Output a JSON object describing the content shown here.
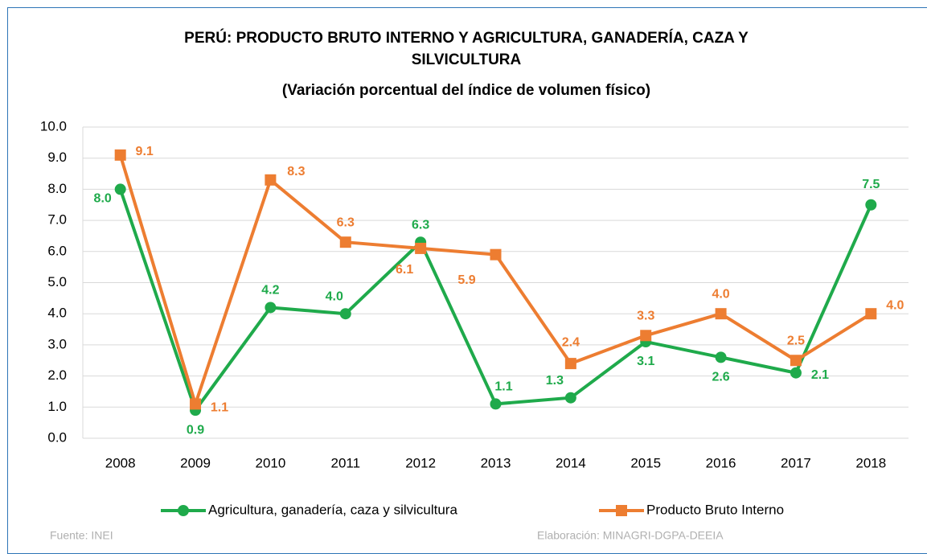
{
  "chart_data": {
    "type": "line",
    "title": "PERÚ: PRODUCTO BRUTO INTERNO Y AGRICULTURA, GANADERÍA, CAZA Y SILVICULTURA",
    "subtitle": "(Variación porcentual del índice de volumen físico)",
    "categories": [
      "2008",
      "2009",
      "2010",
      "2011",
      "2012",
      "2013",
      "2014",
      "2015",
      "2016",
      "2017",
      "2018"
    ],
    "series": [
      {
        "name": "Agricultura, ganadería, caza y silvicultura",
        "color": "#1faa4b",
        "marker": "circle",
        "values": [
          8,
          0.9,
          4.2,
          4,
          6.3,
          1.1,
          1.3,
          3.1,
          2.6,
          2.1,
          7.5
        ],
        "value_labels": [
          "8.0",
          "0.9",
          "4.2",
          "4.0",
          "6.3",
          "1.1",
          "1.3",
          "3.1",
          "2.6",
          "2.1",
          "7.5"
        ]
      },
      {
        "name": "Producto Bruto Interno",
        "color": "#ed7d31",
        "marker": "square",
        "values": [
          9.1,
          1.1,
          8.3,
          6.3,
          6.1,
          5.9,
          2.4,
          3.3,
          4,
          2.5,
          4
        ],
        "value_labels": [
          "9.1",
          "1.1",
          "8.3",
          "6.3",
          "6.1",
          "5.9",
          "2.4",
          "3.3",
          "4.0",
          "2.5",
          "4.0"
        ]
      }
    ],
    "ylim": [
      0,
      10
    ],
    "yticks": [
      {
        "value": 0,
        "label": "0.0"
      },
      {
        "value": 1,
        "label": "1.0"
      },
      {
        "value": 2,
        "label": "2.0"
      },
      {
        "value": 3,
        "label": "3.0"
      },
      {
        "value": 4,
        "label": "4.0"
      },
      {
        "value": 5,
        "label": "5.0"
      },
      {
        "value": 6,
        "label": "6.0"
      },
      {
        "value": 7,
        "label": "7.0"
      },
      {
        "value": 8,
        "label": "8.0"
      },
      {
        "value": 9,
        "label": "9.0"
      },
      {
        "value": 10,
        "label": "10.0"
      }
    ],
    "grid": true,
    "legend": "bottom",
    "source": "Fuente: INEI",
    "credit": "Elaboración: MINAGRI-DGPA-DEEIA"
  }
}
